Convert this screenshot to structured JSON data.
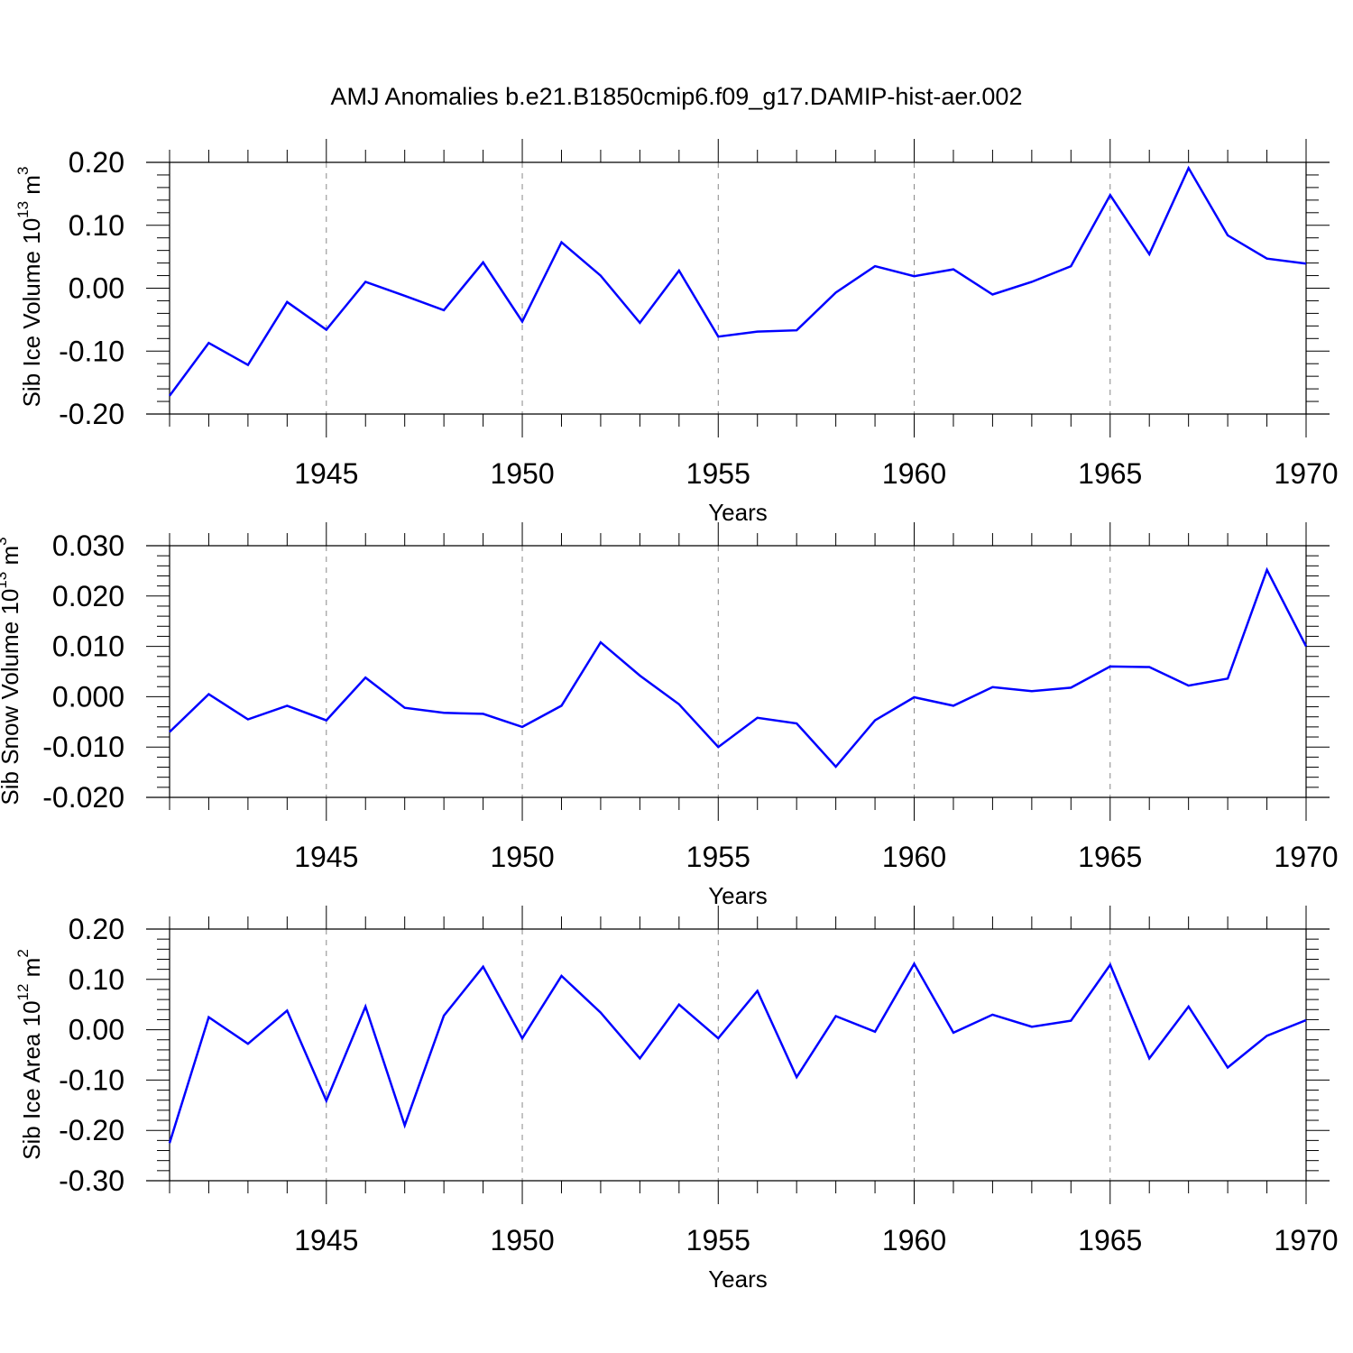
{
  "title": "AMJ Anomalies b.e21.B1850cmip6.f09_g17.DAMIP-hist-aer.002",
  "chart_data": [
    {
      "type": "line",
      "ylabel": "Sib Ice Volume 10",
      "ylabel_exp": "13",
      "ylabel_unit": " m",
      "ylabel_unit_exp": "3",
      "xlabel": "Years",
      "xlim": [
        1941,
        1970
      ],
      "ylim": [
        -0.2,
        0.2
      ],
      "yticks": [
        -0.2,
        -0.1,
        0.0,
        0.1,
        0.2
      ],
      "ytick_labels": [
        "-0.20",
        "-0.10",
        "0.00",
        "0.10",
        "0.20"
      ],
      "xticks": [
        1945,
        1950,
        1955,
        1960,
        1965,
        1970
      ],
      "xtick_labels": [
        "1945",
        "1950",
        "1955",
        "1960",
        "1965",
        "1970"
      ],
      "line_color": "#0000ff",
      "x": [
        1941,
        1942,
        1943,
        1944,
        1945,
        1946,
        1947,
        1948,
        1949,
        1950,
        1951,
        1952,
        1953,
        1954,
        1955,
        1956,
        1957,
        1958,
        1959,
        1960,
        1961,
        1962,
        1963,
        1964,
        1965,
        1966,
        1967,
        1968,
        1969,
        1970
      ],
      "values": [
        -0.171,
        -0.087,
        -0.122,
        -0.022,
        -0.066,
        0.01,
        -0.012,
        -0.035,
        0.041,
        -0.053,
        0.073,
        0.02,
        -0.055,
        0.028,
        -0.077,
        -0.069,
        -0.067,
        -0.007,
        0.035,
        0.019,
        0.03,
        -0.01,
        0.01,
        0.035,
        0.148,
        0.054,
        0.191,
        0.084,
        0.047,
        0.039
      ]
    },
    {
      "type": "line",
      "ylabel": "Sib Snow Volume 10",
      "ylabel_exp": "13",
      "ylabel_unit": " m",
      "ylabel_unit_exp": "3",
      "xlabel": "Years",
      "xlim": [
        1941,
        1970
      ],
      "ylim": [
        -0.02,
        0.03
      ],
      "yticks": [
        -0.02,
        -0.01,
        0.0,
        0.01,
        0.02,
        0.03
      ],
      "ytick_labels": [
        "-0.020",
        "-0.010",
        "0.000",
        "0.010",
        "0.020",
        "0.030"
      ],
      "xticks": [
        1945,
        1950,
        1955,
        1960,
        1965,
        1970
      ],
      "xtick_labels": [
        "1945",
        "1950",
        "1955",
        "1960",
        "1965",
        "1970"
      ],
      "line_color": "#0000ff",
      "x": [
        1941,
        1942,
        1943,
        1944,
        1945,
        1946,
        1947,
        1948,
        1949,
        1950,
        1951,
        1952,
        1953,
        1954,
        1955,
        1956,
        1957,
        1958,
        1959,
        1960,
        1961,
        1962,
        1963,
        1964,
        1965,
        1966,
        1967,
        1968,
        1969,
        1970
      ],
      "values": [
        -0.007,
        0.0005,
        -0.0045,
        -0.0018,
        -0.0047,
        0.0038,
        -0.0022,
        -0.0032,
        -0.0034,
        -0.006,
        -0.0018,
        0.0108,
        0.0042,
        -0.0015,
        -0.01,
        -0.0042,
        -0.0053,
        -0.0139,
        -0.0047,
        -0.0001,
        -0.0018,
        0.0019,
        0.0011,
        0.0018,
        0.006,
        0.0059,
        0.0022,
        0.0036,
        0.0252,
        0.01
      ]
    },
    {
      "type": "line",
      "ylabel": "Sib Ice Area 10",
      "ylabel_exp": "12",
      "ylabel_unit": " m",
      "ylabel_unit_exp": "2",
      "xlabel": "Years",
      "xlim": [
        1941,
        1970
      ],
      "ylim": [
        -0.3,
        0.2
      ],
      "yticks": [
        -0.3,
        -0.2,
        -0.1,
        0.0,
        0.1,
        0.2
      ],
      "ytick_labels": [
        "-0.30",
        "-0.20",
        "-0.10",
        "0.00",
        "0.10",
        "0.20"
      ],
      "xticks": [
        1945,
        1950,
        1955,
        1960,
        1965,
        1970
      ],
      "xtick_labels": [
        "1945",
        "1950",
        "1955",
        "1960",
        "1965",
        "1970"
      ],
      "line_color": "#0000ff",
      "x": [
        1941,
        1942,
        1943,
        1944,
        1945,
        1946,
        1947,
        1948,
        1949,
        1950,
        1951,
        1952,
        1953,
        1954,
        1955,
        1956,
        1957,
        1958,
        1959,
        1960,
        1961,
        1962,
        1963,
        1964,
        1965,
        1966,
        1967,
        1968,
        1969,
        1970
      ],
      "values": [
        -0.225,
        0.025,
        -0.028,
        0.038,
        -0.141,
        0.046,
        -0.19,
        0.028,
        0.125,
        -0.017,
        0.107,
        0.034,
        -0.057,
        0.05,
        -0.017,
        0.077,
        -0.094,
        0.027,
        -0.004,
        0.131,
        -0.006,
        0.03,
        0.006,
        0.018,
        0.129,
        -0.057,
        0.046,
        -0.075,
        -0.012,
        0.019
      ]
    }
  ]
}
